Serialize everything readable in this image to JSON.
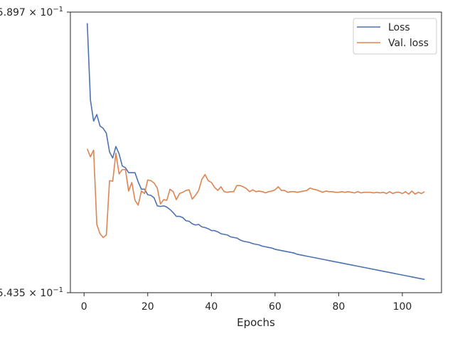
{
  "chart_data": {
    "type": "line",
    "title": "",
    "xlabel": "Epochs",
    "ylabel": "",
    "xlim": [
      -4.3,
      112.3
    ],
    "x_ticks": [
      0,
      20,
      40,
      60,
      80,
      100
    ],
    "x_tick_labels": [
      "0",
      "20",
      "40",
      "60",
      "80",
      "100"
    ],
    "y_scale": "log",
    "ylim": [
      0.5435,
      0.5897
    ],
    "y_tick_labels": [
      {
        "value": 0.5897,
        "mantissa": "5.897",
        "base": "10",
        "exponent": "−1"
      },
      {
        "value": 0.5435,
        "mantissa": "5.435",
        "base": "10",
        "exponent": "−1"
      }
    ],
    "grid": false,
    "legend_position": "top-right",
    "x": [
      1,
      2,
      3,
      4,
      5,
      6,
      7,
      8,
      9,
      10,
      11,
      12,
      13,
      14,
      15,
      16,
      17,
      18,
      19,
      20,
      21,
      22,
      23,
      24,
      25,
      26,
      27,
      28,
      29,
      30,
      31,
      32,
      33,
      34,
      35,
      36,
      37,
      38,
      39,
      40,
      41,
      42,
      43,
      44,
      45,
      46,
      47,
      48,
      49,
      50,
      51,
      52,
      53,
      54,
      55,
      56,
      57,
      58,
      59,
      60,
      61,
      62,
      63,
      64,
      65,
      66,
      67,
      68,
      69,
      70,
      71,
      72,
      73,
      74,
      75,
      76,
      77,
      78,
      79,
      80,
      81,
      82,
      83,
      84,
      85,
      86,
      87,
      88,
      89,
      90,
      91,
      92,
      93,
      94,
      95,
      96,
      97,
      98,
      99,
      100,
      101,
      102,
      103,
      104,
      105,
      106,
      107
    ],
    "series": [
      {
        "name": "Loss",
        "color": "#4c72b0",
        "values": [
          0.5878,
          0.5748,
          0.5713,
          0.5724,
          0.5705,
          0.5701,
          0.5693,
          0.5662,
          0.5652,
          0.5671,
          0.5659,
          0.5639,
          0.5636,
          0.5628,
          0.5628,
          0.5628,
          0.5613,
          0.5601,
          0.5601,
          0.5592,
          0.5591,
          0.5587,
          0.5574,
          0.5573,
          0.5574,
          0.5572,
          0.5568,
          0.5563,
          0.5557,
          0.5557,
          0.5555,
          0.555,
          0.5549,
          0.5545,
          0.5543,
          0.5544,
          0.554,
          0.5539,
          0.5537,
          0.5534,
          0.5534,
          0.5532,
          0.5529,
          0.5528,
          0.5527,
          0.5524,
          0.5523,
          0.5522,
          0.5519,
          0.5517,
          0.5516,
          0.5515,
          0.5513,
          0.5512,
          0.5511,
          0.5509,
          0.5508,
          0.5507,
          0.5506,
          0.5504,
          0.5503,
          0.5502,
          0.5501,
          0.55,
          0.5499,
          0.5498,
          0.5496,
          0.5495,
          0.5494,
          0.5493,
          0.5492,
          0.5491,
          0.549,
          0.5489,
          0.5488,
          0.5487,
          0.5486,
          0.5485,
          0.5484,
          0.5483,
          0.5482,
          0.5481,
          0.548,
          0.5479,
          0.5478,
          0.5477,
          0.5476,
          0.5475,
          0.5474,
          0.5473,
          0.5472,
          0.5471,
          0.547,
          0.5469,
          0.5468,
          0.5467,
          0.5466,
          0.5465,
          0.5464,
          0.5463,
          0.5462,
          0.5461,
          0.546,
          0.5459,
          0.5458,
          0.5457,
          0.5456
        ]
      },
      {
        "name": "Val. loss",
        "color": "#dd8452",
        "values": [
          0.5667,
          0.5654,
          0.5665,
          0.5544,
          0.5529,
          0.5523,
          0.5527,
          0.5615,
          0.5614,
          0.566,
          0.5626,
          0.5633,
          0.5633,
          0.5598,
          0.5612,
          0.5583,
          0.5575,
          0.5598,
          0.5594,
          0.5616,
          0.5615,
          0.5611,
          0.5603,
          0.5577,
          0.5584,
          0.5583,
          0.5601,
          0.5597,
          0.5584,
          0.5594,
          0.5596,
          0.5599,
          0.56,
          0.5585,
          0.5591,
          0.5599,
          0.5617,
          0.5625,
          0.5615,
          0.5612,
          0.5604,
          0.5599,
          0.5605,
          0.5597,
          0.5596,
          0.5597,
          0.5597,
          0.5607,
          0.5607,
          0.5605,
          0.5602,
          0.5597,
          0.56,
          0.5597,
          0.5598,
          0.5597,
          0.5595,
          0.5597,
          0.5598,
          0.56,
          0.5605,
          0.5599,
          0.5599,
          0.5596,
          0.5597,
          0.5597,
          0.5596,
          0.5597,
          0.5598,
          0.5599,
          0.5603,
          0.5601,
          0.56,
          0.5598,
          0.5596,
          0.5598,
          0.5597,
          0.5597,
          0.5596,
          0.5596,
          0.5597,
          0.5596,
          0.5597,
          0.5596,
          0.5595,
          0.5597,
          0.5595,
          0.5596,
          0.5596,
          0.5596,
          0.5595,
          0.5596,
          0.5595,
          0.5596,
          0.5594,
          0.5597,
          0.5594,
          0.5596,
          0.5596,
          0.5594,
          0.5597,
          0.5593,
          0.5598,
          0.5593,
          0.5596,
          0.5594,
          0.5597
        ]
      }
    ]
  }
}
